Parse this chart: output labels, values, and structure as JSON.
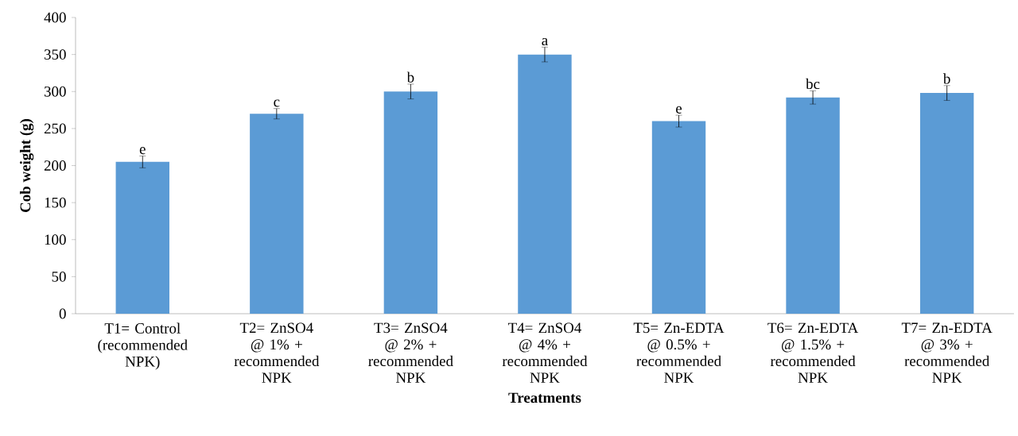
{
  "chart_data": {
    "type": "bar",
    "xlabel": "Treatments",
    "ylabel": "Cob weight (g)",
    "categories": [
      "T1= Control (recommended NPK)",
      "T2= ZnSO4 @ 1% + recommended NPK",
      "T3= ZnSO4 @ 2% + recommended NPK",
      "T4= ZnSO4 @ 4% + recommended NPK",
      "T5= Zn-EDTA @ 0.5% + recommended NPK",
      "T6= Zn-EDTA @ 1.5% + recommended NPK",
      "T7= Zn-EDTA @ 3% + recommended NPK"
    ],
    "values": [
      205,
      270,
      300,
      350,
      260,
      292,
      298
    ],
    "errors": [
      8,
      7,
      10,
      10,
      8,
      9,
      10
    ],
    "color": "#5b9bd5",
    "ylim": [
      0,
      400
    ],
    "yticks": [
      0,
      50,
      100,
      150,
      200,
      250,
      300,
      350,
      400
    ],
    "annotations": [
      {
        "text": "e",
        "x": "T1= Control (recommended NPK)",
        "y": 213
      },
      {
        "text": "c",
        "x": "T2= ZnSO4 @ 1% + recommended NPK",
        "y": 277
      },
      {
        "text": "b",
        "x": "T3= ZnSO4 @ 2% + recommended NPK",
        "y": 310
      },
      {
        "text": "a",
        "x": "T4= ZnSO4 @ 4% + recommended NPK",
        "y": 360
      },
      {
        "text": "e",
        "x": "T5= Zn-EDTA @ 0.5% + recommended NPK",
        "y": 268
      },
      {
        "text": "bc",
        "x": "T6= Zn-EDTA @ 1.5% + recommended NPK",
        "y": 301
      },
      {
        "text": "b",
        "x": "T7= Zn-EDTA @ 3% + recommended NPK",
        "y": 308
      }
    ]
  }
}
